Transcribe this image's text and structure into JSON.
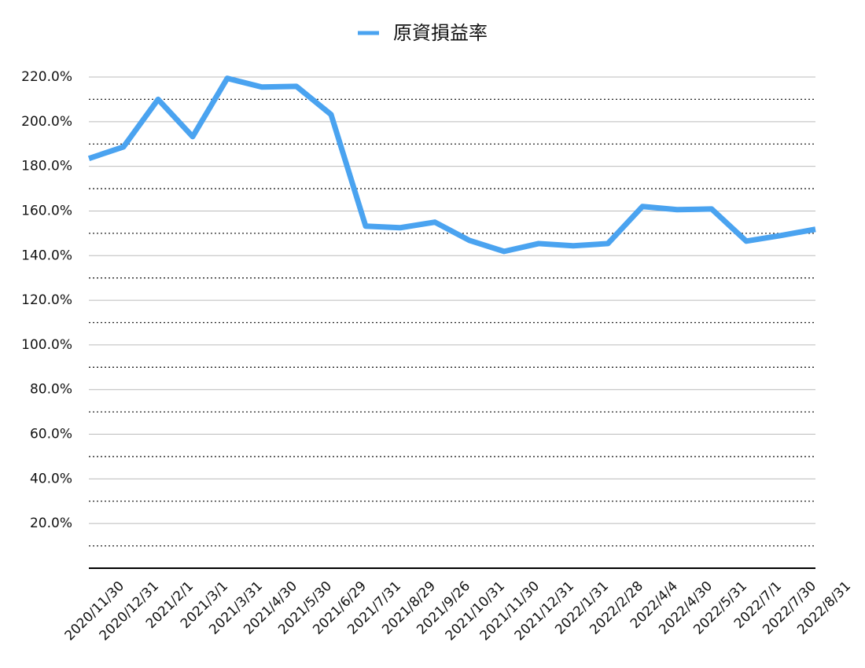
{
  "chart_data": {
    "type": "line",
    "categories": [
      "2020/11/30",
      "2020/12/31",
      "2021/2/1",
      "2021/3/1",
      "2021/3/31",
      "2021/4/30",
      "2021/5/30",
      "2021/6/29",
      "2021/7/31",
      "2021/8/29",
      "2021/9/26",
      "2021/10/31",
      "2021/11/30",
      "2021/12/31",
      "2022/1/31",
      "2022/2/28",
      "2022/4/4",
      "2022/4/30",
      "2022/5/31",
      "2022/7/1",
      "2022/7/30",
      "2022/8/31"
    ],
    "series": [
      {
        "name": "原資損益率",
        "color": "#4aa3f0",
        "values": [
          183.5,
          188.7,
          210,
          193.3,
          219.4,
          215.5,
          215.8,
          203.2,
          153.2,
          152.5,
          155,
          146.8,
          141.9,
          145.4,
          144.4,
          145.4,
          162,
          160.6,
          160.9,
          146.5,
          149,
          151.8
        ]
      }
    ],
    "ylim": [
      0,
      220
    ],
    "yticks": [
      {
        "value": 20,
        "label": "20.0%"
      },
      {
        "value": 40,
        "label": "40.0%"
      },
      {
        "value": 60,
        "label": "60.0%"
      },
      {
        "value": 80,
        "label": "80.0%"
      },
      {
        "value": 100,
        "label": "100.0%"
      },
      {
        "value": 120,
        "label": "120.0%"
      },
      {
        "value": 140,
        "label": "140.0%"
      },
      {
        "value": 160,
        "label": "160.0%"
      },
      {
        "value": 180,
        "label": "180.0%"
      },
      {
        "value": 200,
        "label": "200.0%"
      },
      {
        "value": 220,
        "label": "220.0%"
      }
    ],
    "yminorticks": [
      10,
      30,
      50,
      70,
      90,
      110,
      130,
      150,
      170,
      190,
      210
    ],
    "grid": true,
    "legend": "top"
  }
}
